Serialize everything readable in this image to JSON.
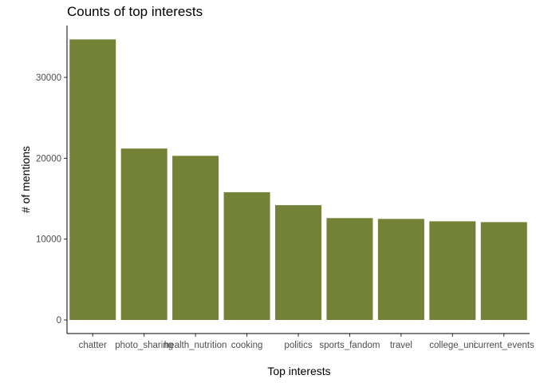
{
  "chart_data": {
    "type": "bar",
    "title": "Counts of top interests",
    "xlabel": "Top interests",
    "ylabel": "# of mentions",
    "categories": [
      "chatter",
      "photo_sharing",
      "health_nutrition",
      "cooking",
      "politics",
      "sports_fandom",
      "travel",
      "college_uni",
      "current_events"
    ],
    "values": [
      34700,
      21200,
      20300,
      15800,
      14200,
      12600,
      12500,
      12200,
      12100
    ],
    "ylim": [
      0,
      36400
    ],
    "yticks": [
      0,
      10000,
      20000,
      30000
    ],
    "ytick_labels": [
      "0",
      "10000",
      "20000",
      "30000"
    ],
    "bar_color": "#738236",
    "grid": false,
    "legend": "none"
  }
}
